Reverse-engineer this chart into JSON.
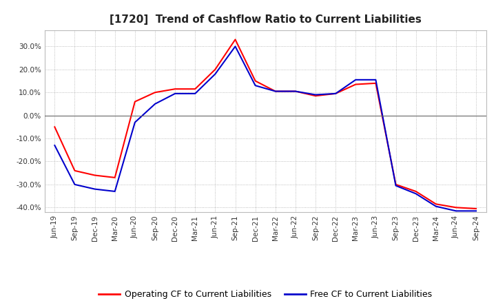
{
  "title": "[1720]  Trend of Cashflow Ratio to Current Liabilities",
  "x_labels": [
    "Jun-19",
    "Sep-19",
    "Dec-19",
    "Mar-20",
    "Jun-20",
    "Sep-20",
    "Dec-20",
    "Mar-21",
    "Jun-21",
    "Sep-21",
    "Dec-21",
    "Mar-22",
    "Jun-22",
    "Sep-22",
    "Dec-22",
    "Mar-23",
    "Jun-23",
    "Sep-23",
    "Dec-23",
    "Mar-24",
    "Jun-24",
    "Sep-24"
  ],
  "operating_cf": [
    -5.0,
    -24.0,
    -26.0,
    -27.0,
    6.0,
    10.0,
    11.5,
    11.5,
    20.0,
    33.0,
    15.0,
    10.5,
    10.5,
    8.5,
    9.5,
    13.5,
    14.0,
    -30.0,
    -33.0,
    -38.5,
    -40.0,
    -40.5
  ],
  "free_cf": [
    -13.0,
    -30.0,
    -32.0,
    -33.0,
    -3.0,
    5.0,
    9.5,
    9.5,
    18.0,
    30.0,
    13.0,
    10.5,
    10.5,
    9.0,
    9.5,
    15.5,
    15.5,
    -30.5,
    -34.0,
    -39.5,
    -41.5,
    -41.5
  ],
  "operating_cf_color": "#ff0000",
  "free_cf_color": "#0000cc",
  "ylim_min": -42.0,
  "ylim_max": 37.0,
  "yticks": [
    -40.0,
    -30.0,
    -20.0,
    -10.0,
    0.0,
    10.0,
    20.0,
    30.0
  ],
  "background_color": "#ffffff",
  "plot_area_color": "#ffffff",
  "grid_color": "#aaaaaa",
  "title_fontsize": 11,
  "legend_fontsize": 9,
  "tick_fontsize": 7.5
}
